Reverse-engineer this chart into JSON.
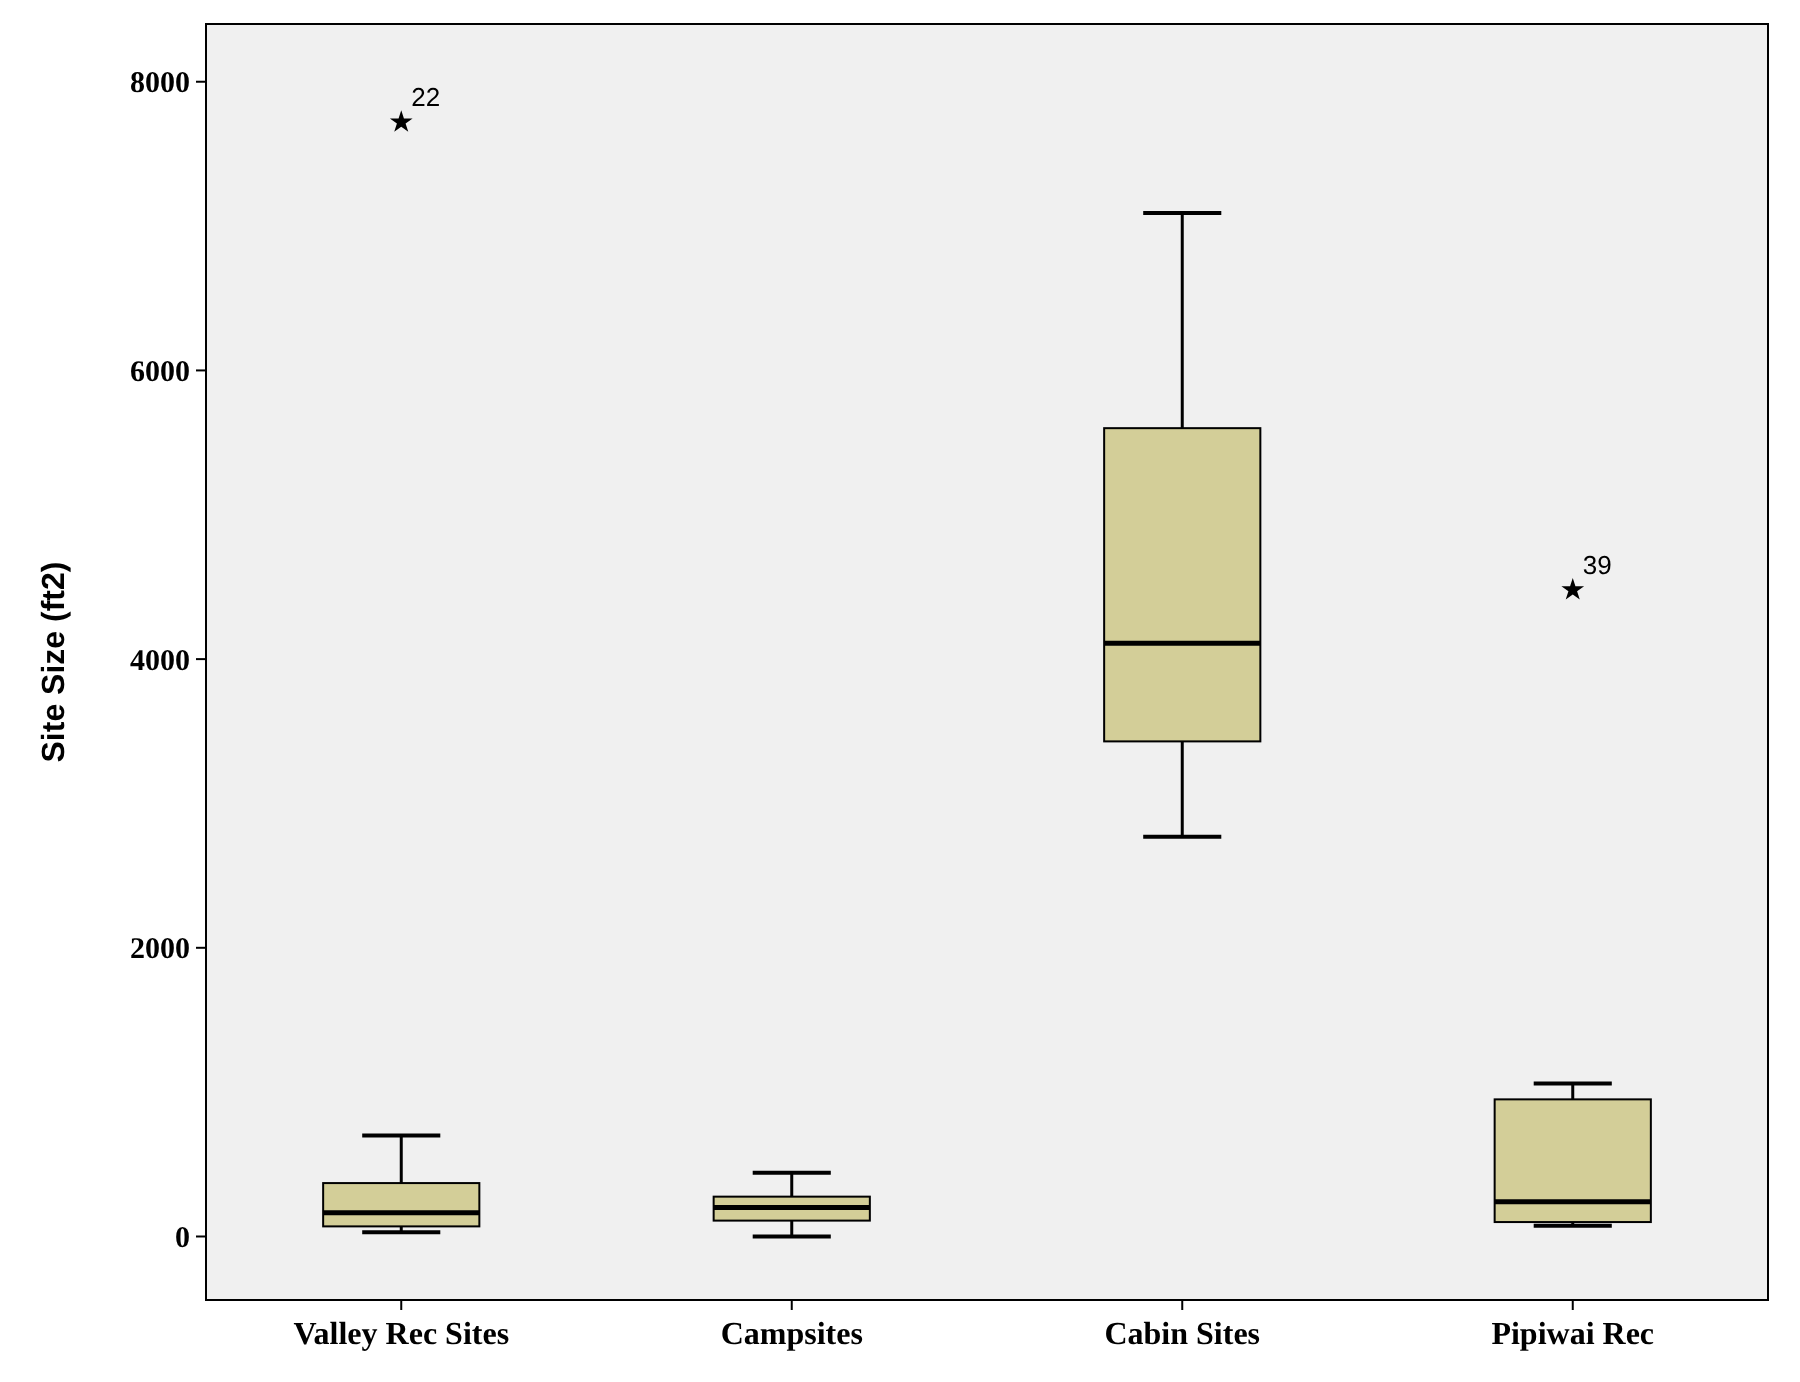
{
  "chart_data": {
    "type": "box",
    "ylabel": "Site Size (ft2)",
    "categories": [
      "Valley Rec Sites",
      "Campsites",
      "Cabin Sites",
      "Pipiwai Rec"
    ],
    "color": "#d3ce98",
    "ylim": [
      -440,
      8400
    ],
    "yticks": [
      0,
      2000,
      4000,
      6000,
      8000
    ],
    "marker": "star",
    "grid": false,
    "boxes": [
      {
        "low": 30,
        "q1": 70,
        "median": 165,
        "q3": 370,
        "high": 700,
        "outliers": [
          7720
        ]
      },
      {
        "low": 0,
        "q1": 110,
        "median": 200,
        "q3": 276,
        "high": 441
      },
      {
        "low": 2770,
        "q1": 3430,
        "median": 4110,
        "q3": 5600,
        "high": 7090
      },
      {
        "low": 75,
        "q1": 100,
        "median": 240,
        "q3": 950,
        "high": 1060,
        "outliers": [
          4480
        ]
      }
    ],
    "annotations": [
      "22",
      "39"
    ]
  }
}
